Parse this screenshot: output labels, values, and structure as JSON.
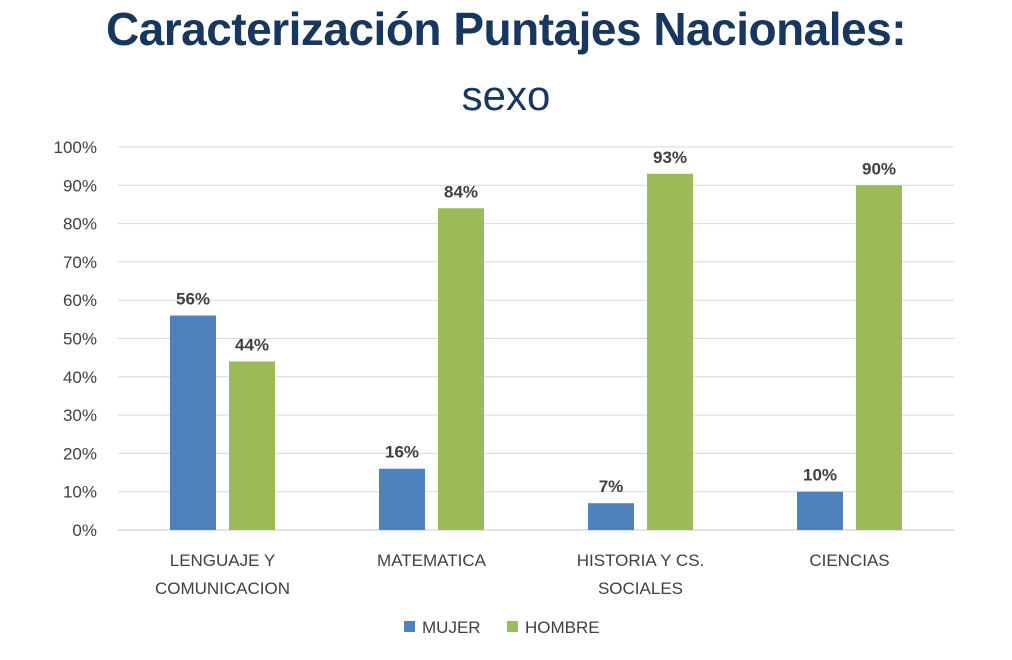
{
  "title": "Caracterización Puntajes Nacionales:",
  "subtitle": "sexo",
  "chart_data": {
    "type": "bar",
    "title": "Caracterización Puntajes Nacionales: sexo",
    "categories": [
      [
        "LENGUAJE Y",
        "COMUNICACION"
      ],
      [
        "MATEMATICA"
      ],
      [
        "HISTORIA Y CS.",
        "SOCIALES"
      ],
      [
        "CIENCIAS"
      ]
    ],
    "series": [
      {
        "name": "MUJER",
        "color": "#4f81bd",
        "values": [
          56,
          16,
          7,
          10
        ],
        "labels": [
          "56%",
          "16%",
          "7%",
          "10%"
        ]
      },
      {
        "name": "HOMBRE",
        "color": "#9bbb59",
        "values": [
          44,
          84,
          93,
          90
        ],
        "labels": [
          "44%",
          "84%",
          "93%",
          "90%"
        ]
      }
    ],
    "ylim": [
      0,
      100
    ],
    "yticks": [
      "0%",
      "10%",
      "20%",
      "30%",
      "40%",
      "50%",
      "60%",
      "70%",
      "80%",
      "90%",
      "100%"
    ],
    "grid": true,
    "legend_position": "bottom"
  }
}
